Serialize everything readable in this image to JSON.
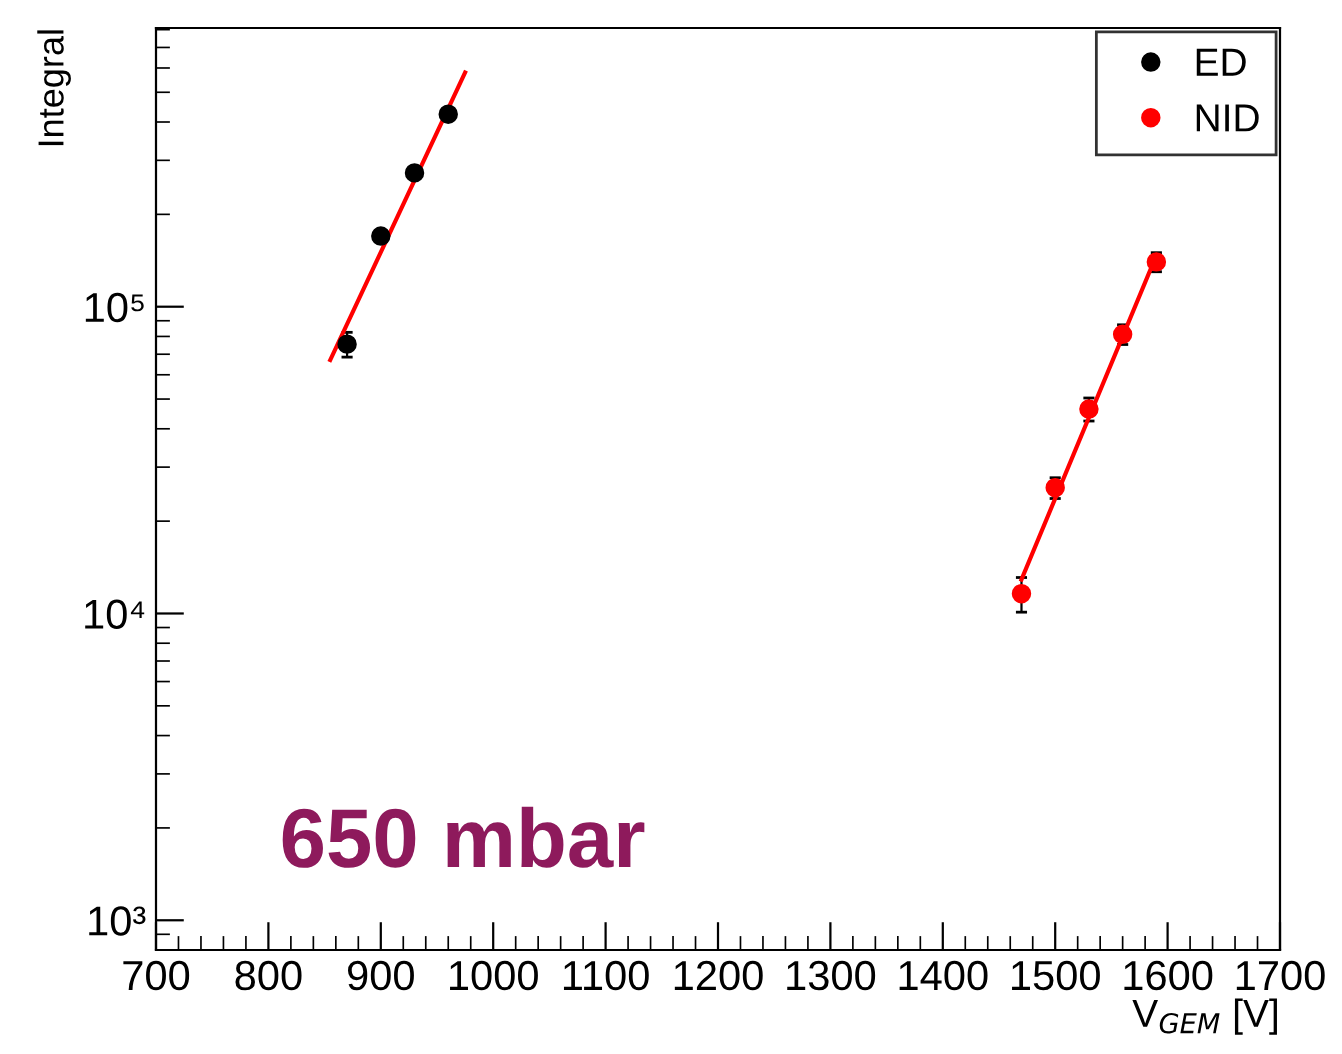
{
  "chart_data": {
    "type": "scatter",
    "xlabel": "V$_{GEM}$ [V]",
    "ylabel": "Integral",
    "log": "y",
    "grid": false,
    "legend": "top right",
    "marker": "circle",
    "xlim": [
      700,
      1700
    ],
    "xticks": [
      700,
      800,
      900,
      1000,
      1100,
      1200,
      1300,
      1400,
      1500,
      1600,
      1700
    ],
    "ylim": [
      800,
      810000
    ],
    "yticks": [
      {
        "value": 1000,
        "label": "10³"
      },
      {
        "value": 10000,
        "label": "10⁴"
      },
      {
        "value": 100000,
        "label": "10⁵"
      }
    ],
    "series": [
      {
        "name": "ED",
        "color": "#000000",
        "x": [
          870,
          900,
          930,
          960
        ],
        "values": [
          75500,
          170000,
          273000,
          424000
        ],
        "errors": [
          7000,
          null,
          null,
          null
        ]
      },
      {
        "name": "NID",
        "color": "#ff0000",
        "x": [
          1470,
          1500,
          1530,
          1560,
          1590
        ],
        "values": [
          11600,
          25700,
          46400,
          81300,
          140000
        ],
        "errors": [
          1500,
          2000,
          4000,
          6000,
          10000
        ]
      },
      {
        "type": "line",
        "color": "#ff0000",
        "x": [
          855,
          975
        ],
        "values": [
          67000,
          580000
        ],
        "marker": "none"
      },
      {
        "type": "line",
        "color": "#ff0000",
        "x": [
          1470,
          1590
        ],
        "values": [
          12900,
          147000
        ],
        "marker": "none"
      }
    ],
    "annotations": [
      "650 mbar"
    ]
  }
}
